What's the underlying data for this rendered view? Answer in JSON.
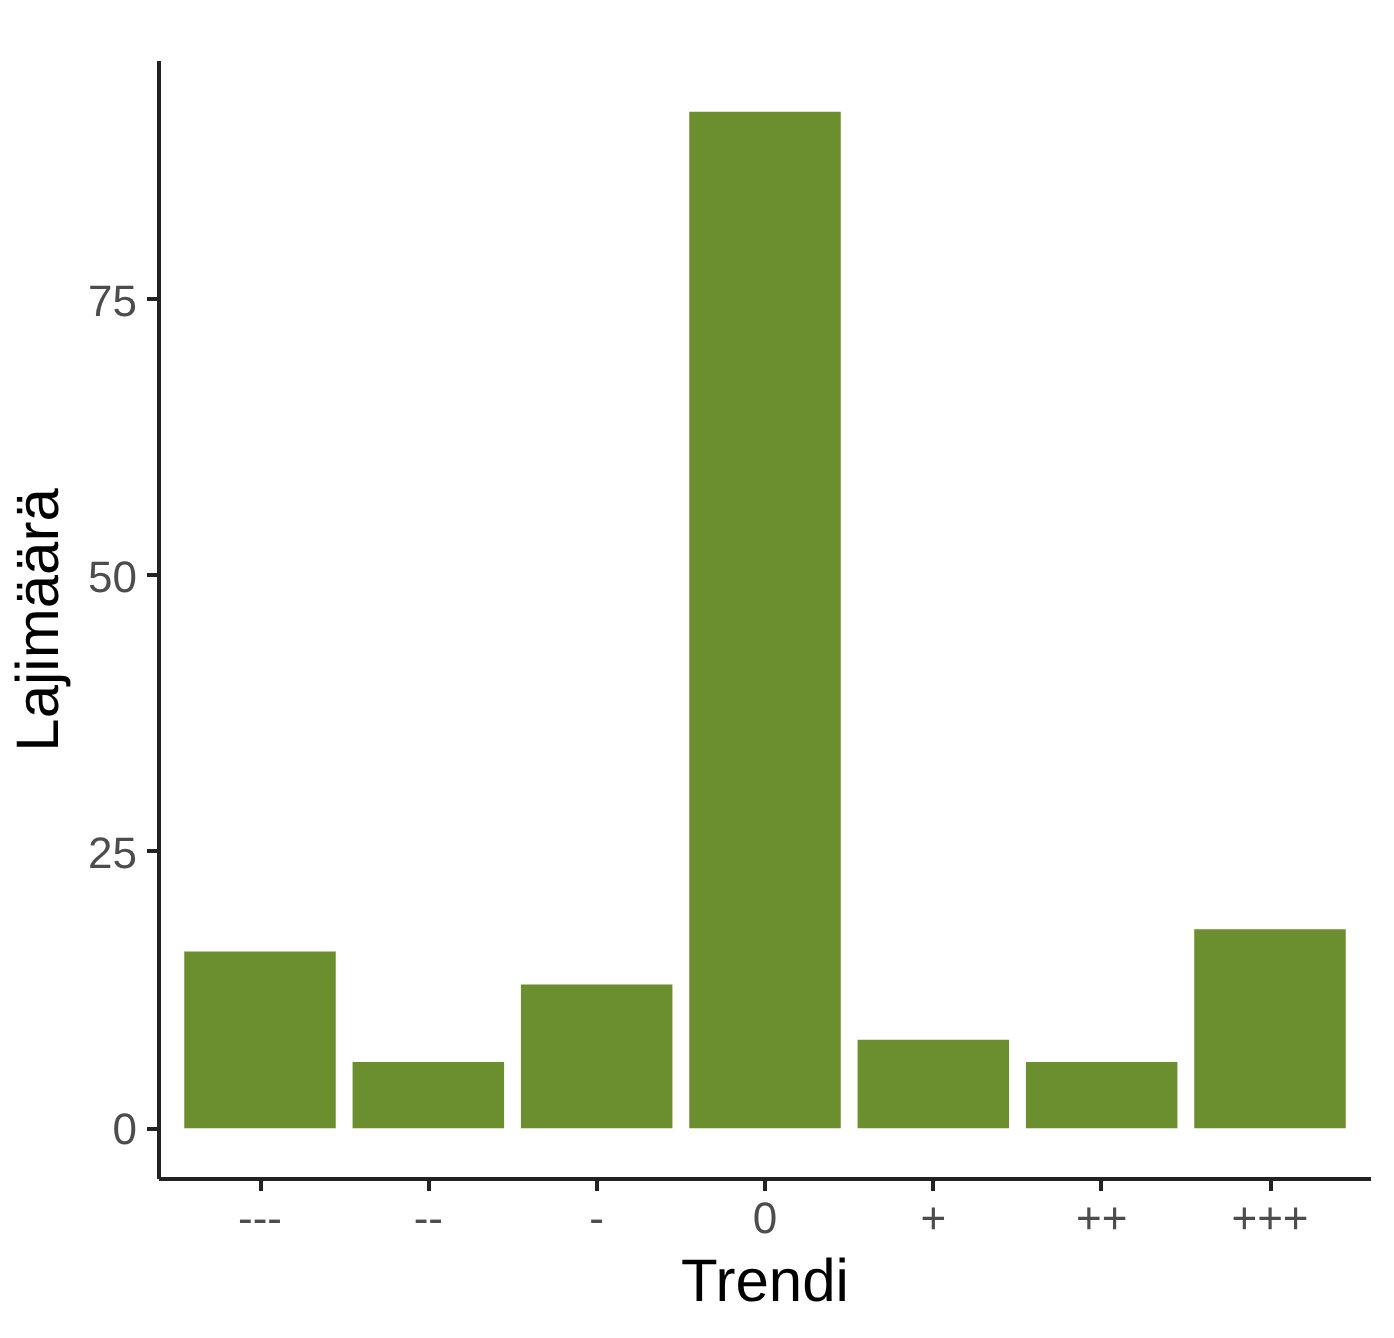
{
  "chart_data": {
    "type": "bar",
    "xlabel": "Trendi",
    "ylabel": "Lajimäärä",
    "categories": [
      "---",
      "--",
      "-",
      "0",
      "+",
      "++",
      "+++"
    ],
    "values": [
      16,
      6,
      13,
      92,
      8,
      6,
      18
    ],
    "color": "#6b8e2f",
    "ylim": [
      -4.6,
      96.6
    ],
    "yticks": [
      0,
      25,
      50,
      75
    ],
    "grid": false
  }
}
